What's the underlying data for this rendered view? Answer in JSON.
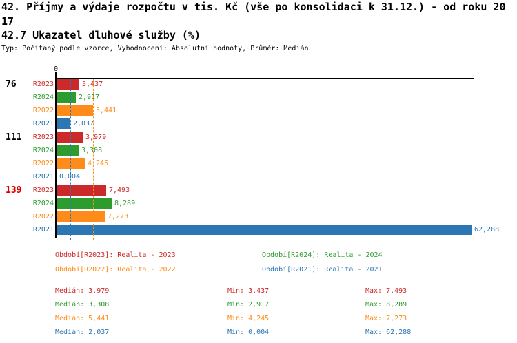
{
  "header": {
    "title_lines": [
      "42. Příjmy a výdaje rozpočtu v tis. Kč (vše po konsolidaci k 31.12.) - od roku 20",
      "17",
      "42.7 Ukazatel dluhové služby (%)"
    ],
    "meta": "Typ: Počítaný podle vzorce, Vyhodnocení: Absolutní hodnoty, Průměr: Medián"
  },
  "chart_data": {
    "type": "bar",
    "orientation": "horizontal",
    "title": "42. Příjmy a výdaje rozpočtu v tis. Kč (vše po konsolidaci k 31.12.) - od roku 2017",
    "subtitle": "42.7 Ukazatel dluhové služby (%)",
    "meta": "Typ: Počítaný podle vzorce, Vyhodnocení: Absolutní hodnoty, Průměr: Medián",
    "x_axis": {
      "zero_label": "0",
      "min": 0,
      "max_visible": 62.8,
      "grid": false
    },
    "legend_position": "bottom",
    "series": [
      {
        "id": "R2023",
        "legend": "Období[R2023]: Realita - 2023",
        "color": "#cc2a2a",
        "median": 3.979,
        "min": 3.437,
        "max": 7.493
      },
      {
        "id": "R2024",
        "legend": "Období[R2024]: Realita - 2024",
        "color": "#2e9b2e",
        "median": 3.308,
        "min": 2.917,
        "max": 8.289
      },
      {
        "id": "R2022",
        "legend": "Období[R2022]: Realita - 2022",
        "color": "#ff8c1a",
        "median": 5.441,
        "min": 4.245,
        "max": 7.273
      },
      {
        "id": "R2021",
        "legend": "Období[R2021]: Realita - 2021",
        "color": "#2d76b4",
        "median": 2.037,
        "min": 0.004,
        "max": 62.288
      }
    ],
    "groups": [
      {
        "label": "76",
        "label_color": "#000000",
        "bars": [
          {
            "series": "R2023",
            "value": 3.437,
            "display": "3,437"
          },
          {
            "series": "R2024",
            "value": 2.917,
            "display": "2,917"
          },
          {
            "series": "R2022",
            "value": 5.441,
            "display": "5,441"
          },
          {
            "series": "R2021",
            "value": 2.037,
            "display": "2,037"
          }
        ]
      },
      {
        "label": "111",
        "label_color": "#000000",
        "bars": [
          {
            "series": "R2023",
            "value": 3.979,
            "display": "3,979"
          },
          {
            "series": "R2024",
            "value": 3.308,
            "display": "3,308"
          },
          {
            "series": "R2022",
            "value": 4.245,
            "display": "4,245"
          },
          {
            "series": "R2021",
            "value": 0.004,
            "display": "0,004"
          }
        ]
      },
      {
        "label": "139",
        "label_color": "#dd0000",
        "bars": [
          {
            "series": "R2023",
            "value": 7.493,
            "display": "7,493"
          },
          {
            "series": "R2024",
            "value": 8.289,
            "display": "8,289"
          },
          {
            "series": "R2022",
            "value": 7.273,
            "display": "7,273"
          },
          {
            "series": "R2021",
            "value": 62.288,
            "display": "62,288"
          }
        ]
      }
    ],
    "stats": {
      "median_label": "Medián",
      "min_label": "Min",
      "max_label": "Max",
      "rows": [
        {
          "series": "R2023",
          "median": "3,979",
          "min": "3,437",
          "max": "7,493"
        },
        {
          "series": "R2024",
          "median": "3,308",
          "min": "2,917",
          "max": "8,289"
        },
        {
          "series": "R2022",
          "median": "5,441",
          "min": "4,245",
          "max": "7,273"
        },
        {
          "series": "R2021",
          "median": "2,037",
          "min": "0,004",
          "max": "62,288"
        }
      ]
    }
  }
}
